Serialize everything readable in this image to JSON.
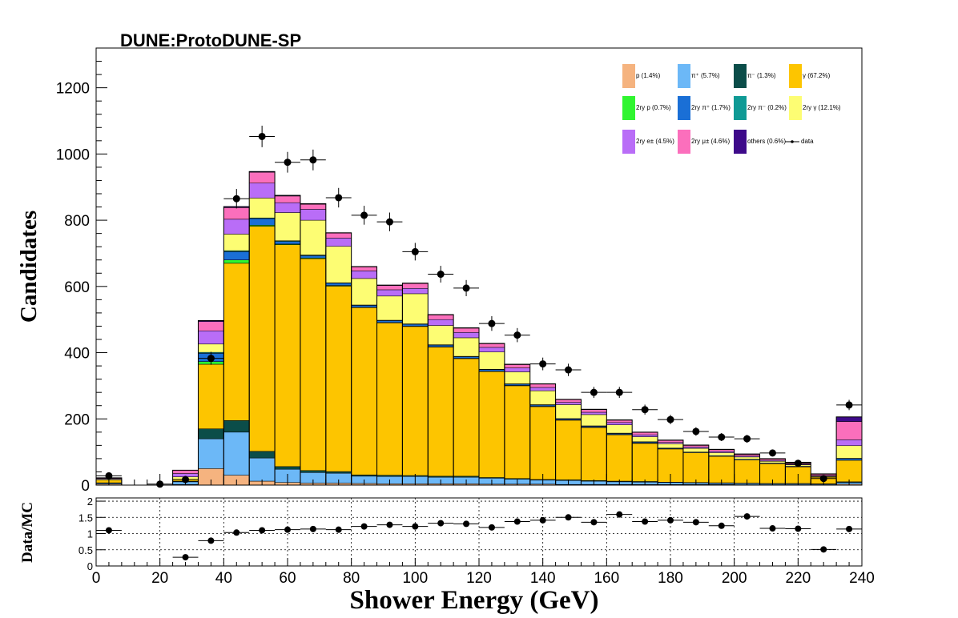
{
  "chart_data": {
    "type": "bar",
    "title": "DUNE:ProtoDUNE-SP",
    "xlabel": "Shower Energy (GeV)",
    "ylabel": "Candidates",
    "ratio_ylabel": "Data/MC",
    "xlim": [
      0,
      240
    ],
    "ylim": [
      0,
      1320
    ],
    "ratio_ylim": [
      0,
      2.1
    ],
    "x_ticks": [
      "0",
      "20",
      "40",
      "60",
      "80",
      "100",
      "120",
      "140",
      "160",
      "180",
      "200",
      "220",
      "240"
    ],
    "y_ticks": [
      "0",
      "200",
      "400",
      "600",
      "800",
      "1000",
      "1200"
    ],
    "ratio_ticks": [
      "0",
      "0.5",
      "1",
      "1.5",
      "2"
    ],
    "bin_edges": [
      0,
      8,
      16,
      24,
      32,
      40,
      48,
      56,
      64,
      72,
      80,
      88,
      96,
      104,
      112,
      120,
      128,
      136,
      144,
      152,
      160,
      168,
      176,
      184,
      192,
      200,
      208,
      216,
      224,
      232,
      240
    ],
    "stacked": true,
    "series": [
      {
        "name": "p (1.4%)",
        "color": "#f5b37f",
        "values": [
          3,
          0,
          0,
          2,
          50,
          30,
          12,
          8,
          6,
          6,
          5,
          4,
          4,
          4,
          4,
          3,
          3,
          3,
          2,
          2,
          2,
          2,
          2,
          2,
          2,
          1,
          1,
          1,
          1,
          3
        ]
      },
      {
        "name": "π⁺ (5.7%)",
        "color": "#6cb8f7",
        "values": [
          3,
          0,
          0,
          8,
          90,
          130,
          70,
          40,
          32,
          30,
          22,
          22,
          22,
          20,
          20,
          18,
          15,
          12,
          12,
          10,
          8,
          7,
          6,
          5,
          4,
          4,
          3,
          3,
          2,
          5
        ]
      },
      {
        "name": "π⁻ (1.3%)",
        "color": "#0b4d49",
        "values": [
          1,
          0,
          0,
          2,
          30,
          35,
          20,
          8,
          6,
          5,
          4,
          4,
          3,
          3,
          3,
          2,
          2,
          2,
          2,
          2,
          2,
          2,
          1,
          1,
          1,
          1,
          1,
          1,
          1,
          2
        ]
      },
      {
        "name": "γ (67.2%)",
        "color": "#fdc500",
        "values": [
          8,
          0,
          0,
          5,
          195,
          475,
          680,
          670,
          640,
          560,
          505,
          460,
          450,
          390,
          355,
          320,
          280,
          220,
          180,
          160,
          140,
          115,
          100,
          90,
          80,
          70,
          60,
          50,
          20,
          65
        ]
      },
      {
        "name": "2ry p (0.7%)",
        "color": "#30f530",
        "values": [
          0,
          0,
          0,
          0,
          8,
          10,
          3,
          2,
          2,
          2,
          1,
          1,
          1,
          1,
          1,
          1,
          1,
          1,
          1,
          1,
          1,
          1,
          0,
          0,
          0,
          0,
          0,
          0,
          0,
          0
        ]
      },
      {
        "name": "2ry π⁺ (1.7%)",
        "color": "#1a6fd6",
        "values": [
          0,
          0,
          0,
          0,
          25,
          25,
          20,
          8,
          7,
          7,
          6,
          6,
          6,
          5,
          5,
          5,
          4,
          4,
          3,
          3,
          3,
          3,
          2,
          2,
          2,
          2,
          2,
          2,
          1,
          5
        ]
      },
      {
        "name": "2ry π⁻ (0.2%)",
        "color": "#0f9a95",
        "values": [
          0,
          0,
          0,
          0,
          3,
          3,
          2,
          2,
          2,
          1,
          1,
          1,
          1,
          1,
          1,
          1,
          1,
          1,
          1,
          1,
          1,
          1,
          1,
          0,
          0,
          0,
          0,
          0,
          0,
          1
        ]
      },
      {
        "name": "2ry γ (12.1%)",
        "color": "#fdfd73",
        "values": [
          3,
          0,
          0,
          8,
          25,
          50,
          60,
          85,
          105,
          110,
          80,
          73,
          91,
          58,
          56,
          52,
          36,
          42,
          42,
          34,
          25,
          15,
          13,
          11,
          9,
          7,
          5,
          4,
          2,
          38
        ]
      },
      {
        "name": "2ry e± (4.5%)",
        "color": "#b96df7",
        "values": [
          2,
          0,
          0,
          10,
          40,
          45,
          45,
          30,
          33,
          25,
          23,
          19,
          16,
          18,
          16,
          14,
          12,
          10,
          7,
          7,
          7,
          6,
          4,
          4,
          4,
          3,
          3,
          2,
          2,
          18
        ]
      },
      {
        "name": "2ry μ± (4.6%)",
        "color": "#fb6fbc",
        "values": [
          2,
          0,
          0,
          10,
          28,
          35,
          33,
          20,
          15,
          15,
          12,
          13,
          15,
          14,
          13,
          11,
          10,
          10,
          8,
          8,
          7,
          7,
          6,
          5,
          5,
          5,
          4,
          5,
          4,
          55
        ]
      },
      {
        "name": "others (0.6%)",
        "color": "#3e0a8a",
        "values": [
          0,
          0,
          0,
          0,
          3,
          3,
          2,
          2,
          2,
          1,
          1,
          1,
          1,
          1,
          1,
          1,
          1,
          1,
          1,
          1,
          1,
          1,
          1,
          1,
          1,
          1,
          1,
          1,
          1,
          14
        ]
      }
    ],
    "data": {
      "name": "data",
      "x": [
        4,
        20,
        28,
        36,
        44,
        52,
        60,
        68,
        76,
        84,
        92,
        100,
        108,
        116,
        124,
        132,
        140,
        148,
        156,
        164,
        172,
        180,
        188,
        196,
        204,
        212,
        220,
        228,
        236
      ],
      "y": [
        28,
        3,
        17,
        383,
        865,
        1053,
        975,
        982,
        868,
        815,
        795,
        705,
        637,
        595,
        488,
        453,
        366,
        348,
        280,
        280,
        228,
        198,
        162,
        145,
        140,
        97,
        66,
        20,
        242
      ]
    },
    "ratio": {
      "x": [
        4,
        28,
        36,
        44,
        52,
        60,
        68,
        76,
        84,
        92,
        100,
        108,
        116,
        124,
        132,
        140,
        148,
        156,
        164,
        172,
        180,
        188,
        196,
        204,
        212,
        220,
        228,
        236
      ],
      "y": [
        1.1,
        0.27,
        0.78,
        1.03,
        1.1,
        1.12,
        1.14,
        1.12,
        1.22,
        1.27,
        1.22,
        1.32,
        1.3,
        1.19,
        1.37,
        1.41,
        1.5,
        1.35,
        1.59,
        1.37,
        1.41,
        1.35,
        1.24,
        1.53,
        1.16,
        1.15,
        0.51,
        1.14
      ]
    }
  }
}
